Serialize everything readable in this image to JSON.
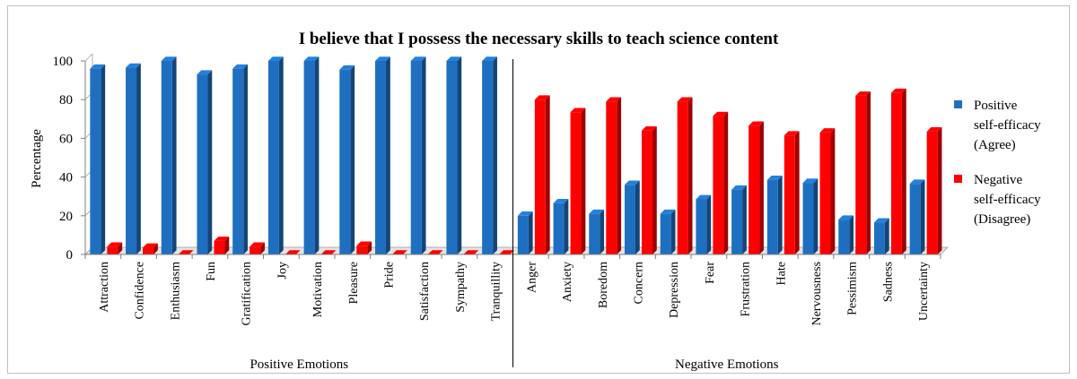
{
  "chart_data": {
    "type": "bar",
    "title": "I believe that I possess the necessary skills to teach science content",
    "ylabel": "Percentage",
    "ylim": [
      0,
      100
    ],
    "yticks": [
      0,
      20,
      40,
      60,
      80,
      100
    ],
    "grid": false,
    "legend_position": "right",
    "groups": [
      {
        "label": "Positive Emotions",
        "start": 0,
        "end": 11
      },
      {
        "label": "Negative Emotions",
        "start": 12,
        "end": 23
      }
    ],
    "categories": [
      "Attraction",
      "Confidence",
      "Enthusiasm",
      "Fun",
      "Gratification",
      "Joy",
      "Motivation",
      "Pleasure",
      "Pride",
      "Satisfaction",
      "Sympathy",
      "Tranquillity",
      "Anger",
      "Anxiety",
      "Boredom",
      "Concern",
      "Depression",
      "Fear",
      "Frustration",
      "Hate",
      "Nervousness",
      "Pessimism",
      "Sadness",
      "Uncertainty"
    ],
    "series": [
      {
        "name": "Positive self-efficacy (Agree)",
        "legend_lines": [
          "Positive",
          "self-efficacy",
          "(Agree)"
        ],
        "color": "#1f6fc0",
        "values": [
          96,
          96.5,
          100,
          93,
          96,
          100,
          100,
          95.5,
          100,
          100,
          100,
          100,
          20,
          26.5,
          21,
          36,
          21,
          28.5,
          33.5,
          38.5,
          37,
          18,
          16.5,
          36.5
        ]
      },
      {
        "name": "Negative self-efficacy (Disagree)",
        "legend_lines": [
          "Negative",
          "self-efficacy",
          "(Disagree)"
        ],
        "color": "#ff0000",
        "values": [
          4,
          3.5,
          0,
          7,
          4,
          0,
          0,
          4.5,
          0,
          0,
          0,
          0,
          80,
          73.5,
          79,
          64,
          79,
          71.5,
          66.5,
          61.5,
          63,
          82,
          83.5,
          63.5
        ]
      }
    ]
  }
}
